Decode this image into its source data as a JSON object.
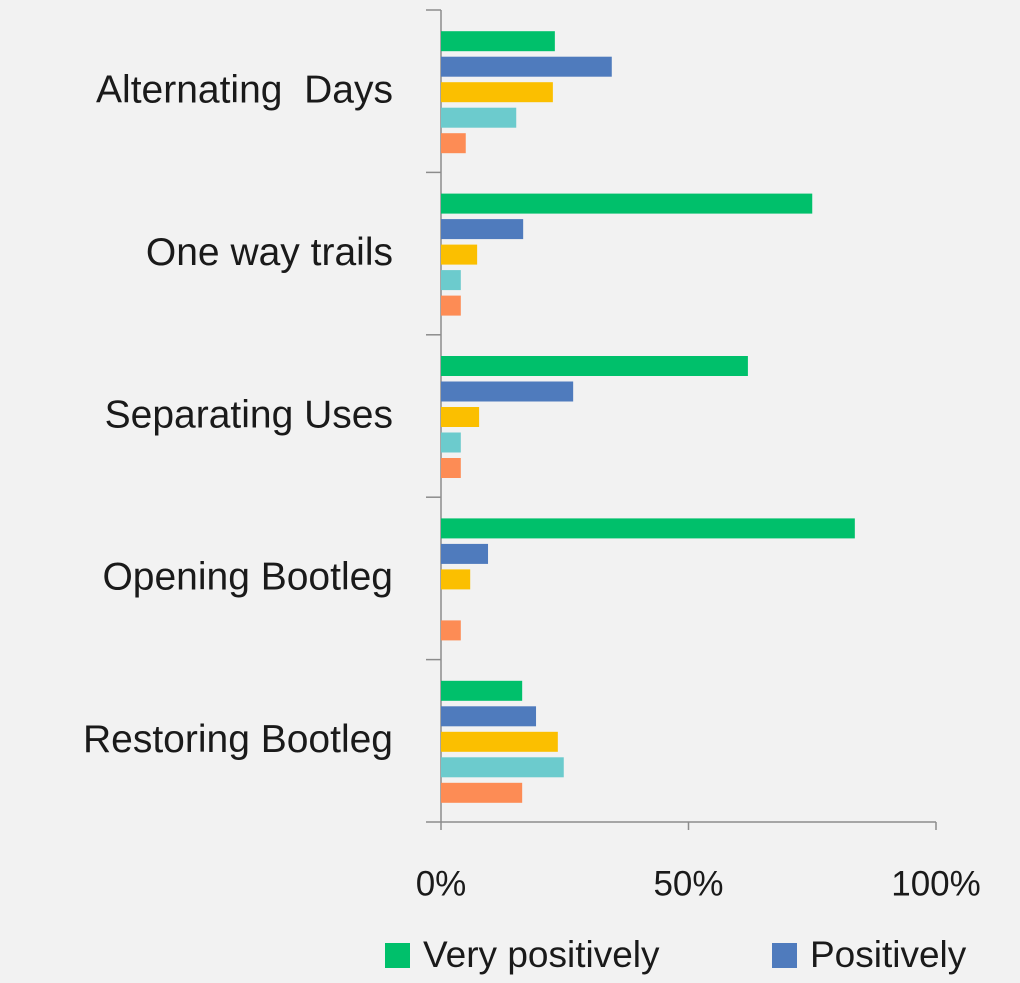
{
  "chart_data": {
    "type": "hbar",
    "categories": [
      "Alternating  Days",
      "One way trails",
      "Separating Uses",
      "Opening Bootleg",
      "Restoring Bootleg"
    ],
    "series": [
      {
        "name": "Very positively",
        "color": "#00c06b",
        "values": [
          23,
          75,
          62,
          83.6,
          16.4
        ]
      },
      {
        "name": "Positively",
        "color": "#4f7bbd",
        "values": [
          34.5,
          16.6,
          26.7,
          9.5,
          19.2
        ]
      },
      {
        "color": "#fbbf00",
        "values": [
          22.6,
          7.3,
          7.7,
          5.9,
          23.6
        ]
      },
      {
        "color": "#6ccbcd",
        "values": [
          15.2,
          4,
          4,
          0,
          24.8
        ]
      },
      {
        "color": "#fd8c55",
        "values": [
          5,
          4,
          4,
          4,
          16.4
        ]
      }
    ],
    "xlim": [
      0,
      100
    ],
    "xticks": [
      {
        "value": 0,
        "label": "0%"
      },
      {
        "value": 50,
        "label": "50%"
      },
      {
        "value": 100,
        "label": "100%"
      }
    ],
    "legend": "bottom"
  }
}
